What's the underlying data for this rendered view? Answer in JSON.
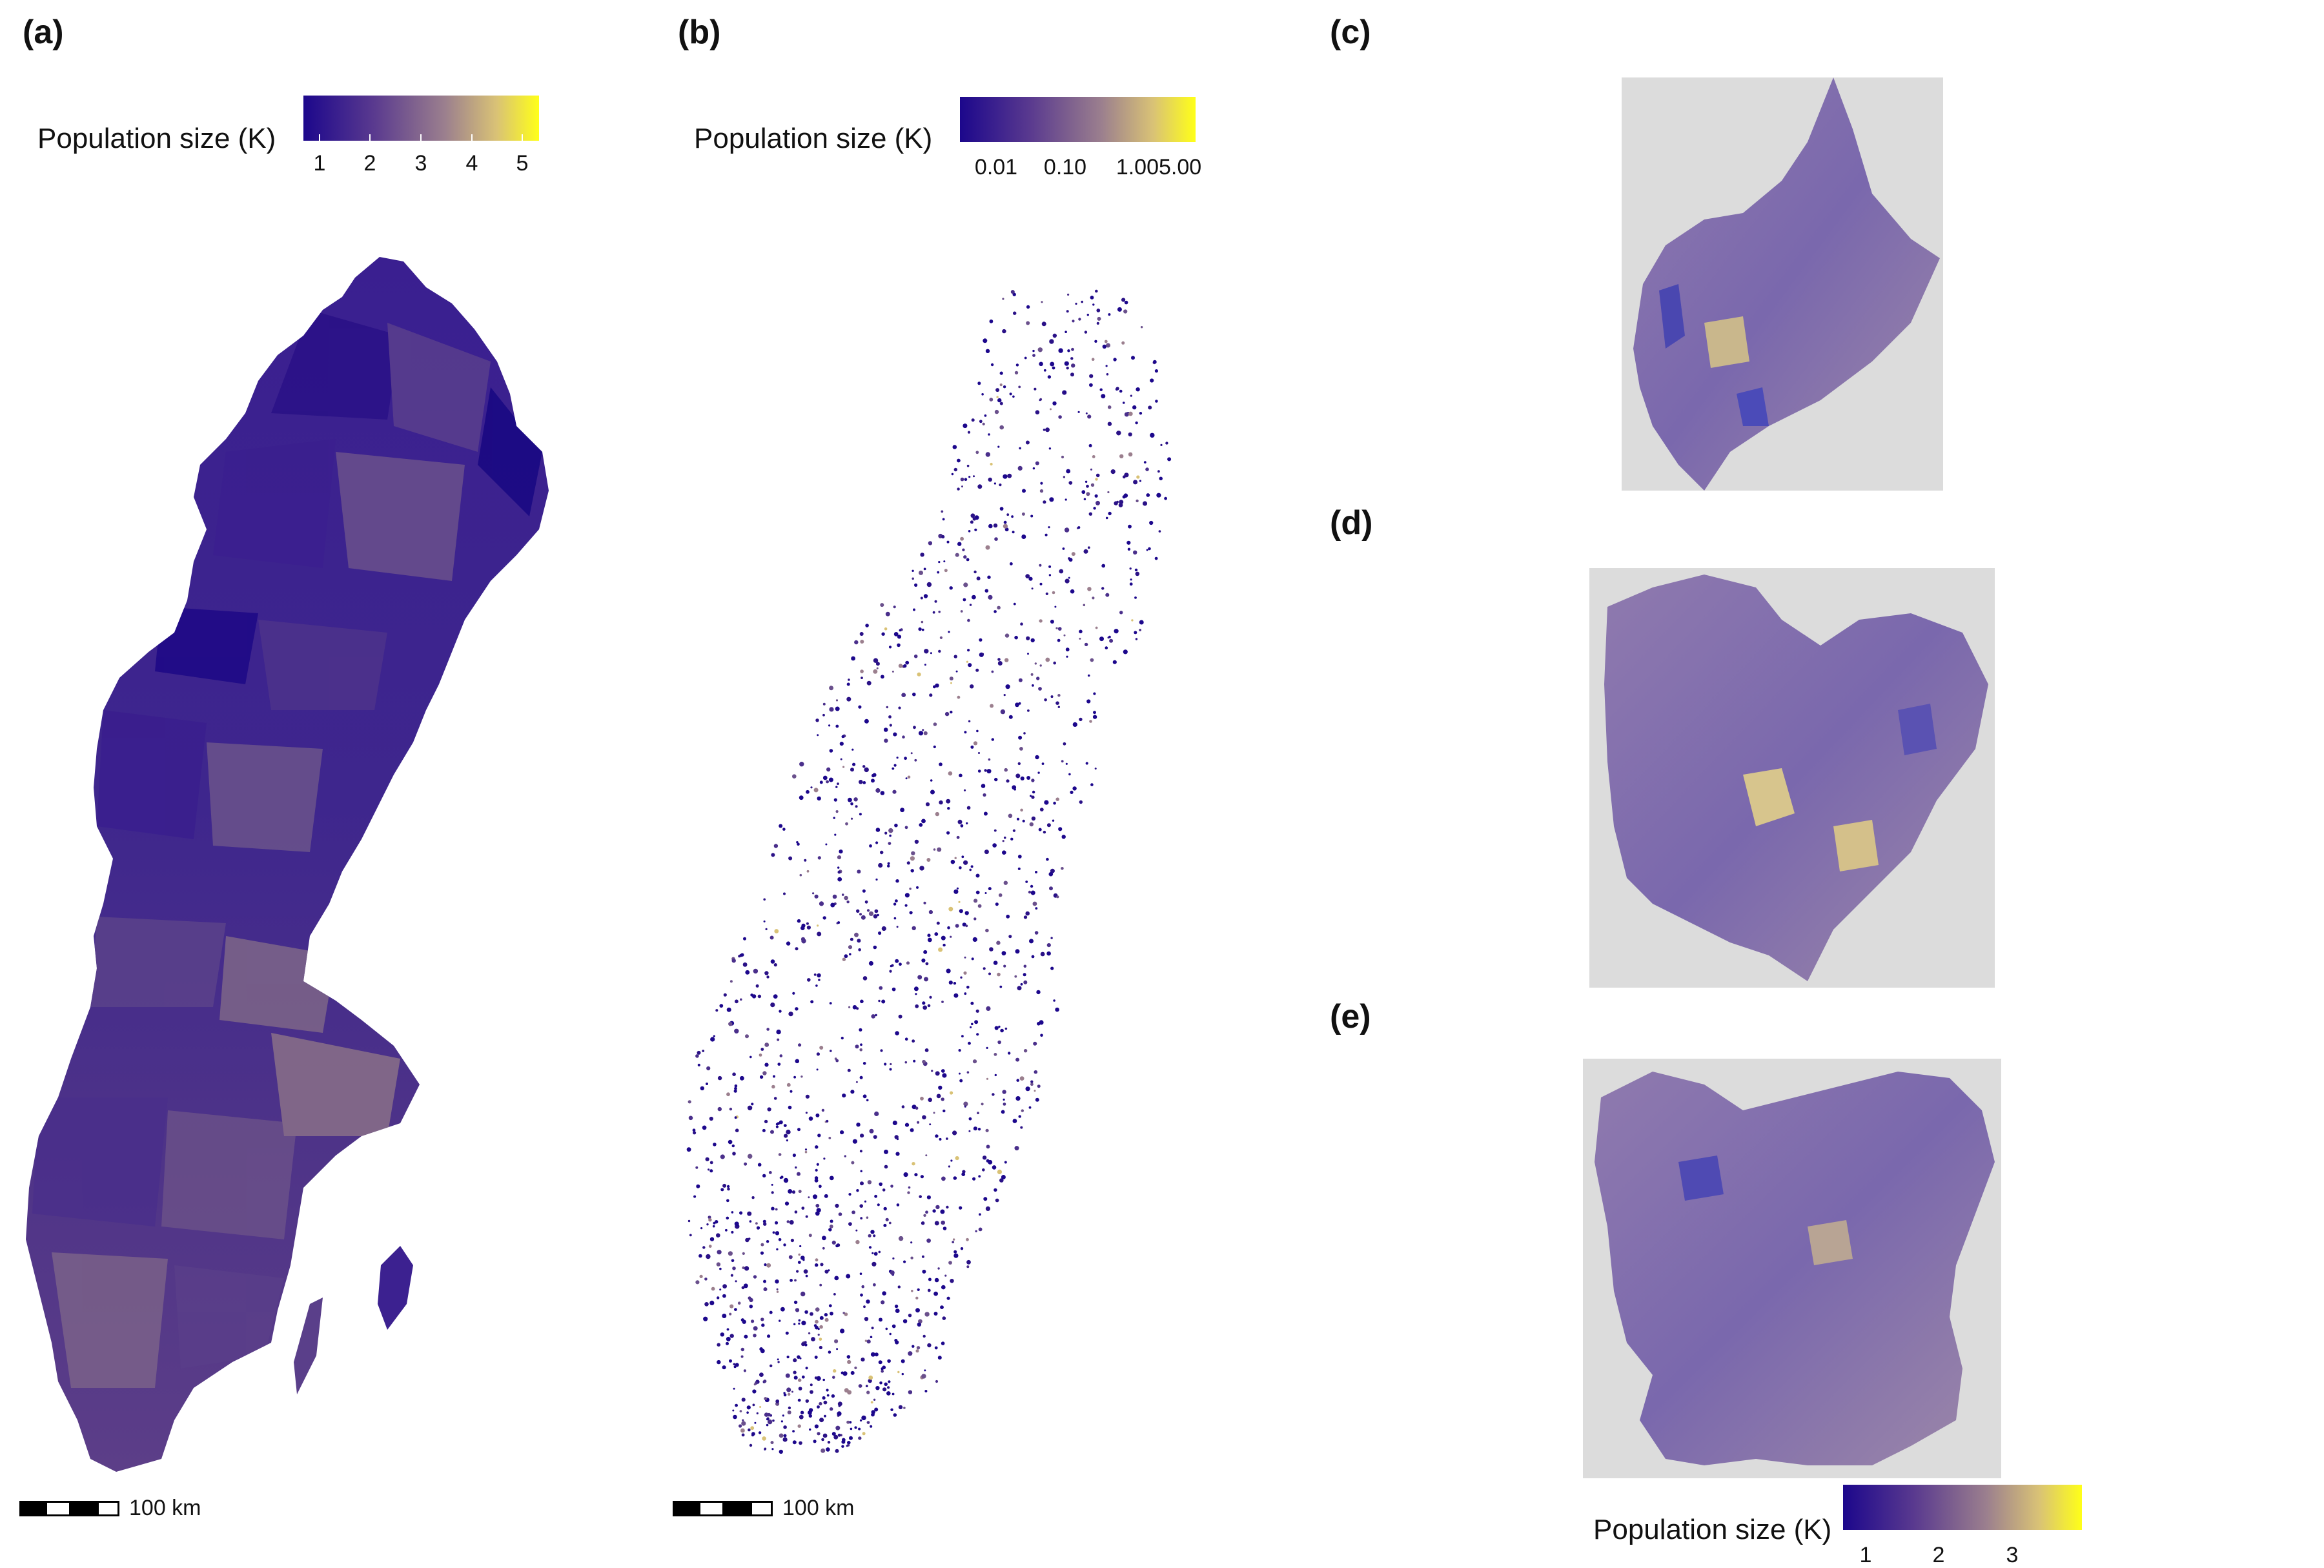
{
  "panels": {
    "a": {
      "label": "(a)"
    },
    "b": {
      "label": "(b)"
    },
    "c": {
      "label": "(c)"
    },
    "d": {
      "label": "(d)"
    },
    "e": {
      "label": "(e)"
    }
  },
  "legend_a": {
    "title": "Population size (K)",
    "ticks": [
      "1",
      "2",
      "3",
      "4",
      "5"
    ]
  },
  "legend_b": {
    "title": "Population size (K)",
    "ticks": [
      "0.01",
      "0.10",
      "1.005.00"
    ]
  },
  "legend_e": {
    "title": "Population size (K)",
    "ticks": [
      "1",
      "2",
      "3"
    ]
  },
  "scalebar_a": {
    "label": "100 km"
  },
  "scalebar_b": {
    "label": "100 km"
  },
  "colors": {
    "low": "#1c078c",
    "mid": "#9b7f8e",
    "high": "#ffff18",
    "basemap": "#d9d9d9"
  }
}
